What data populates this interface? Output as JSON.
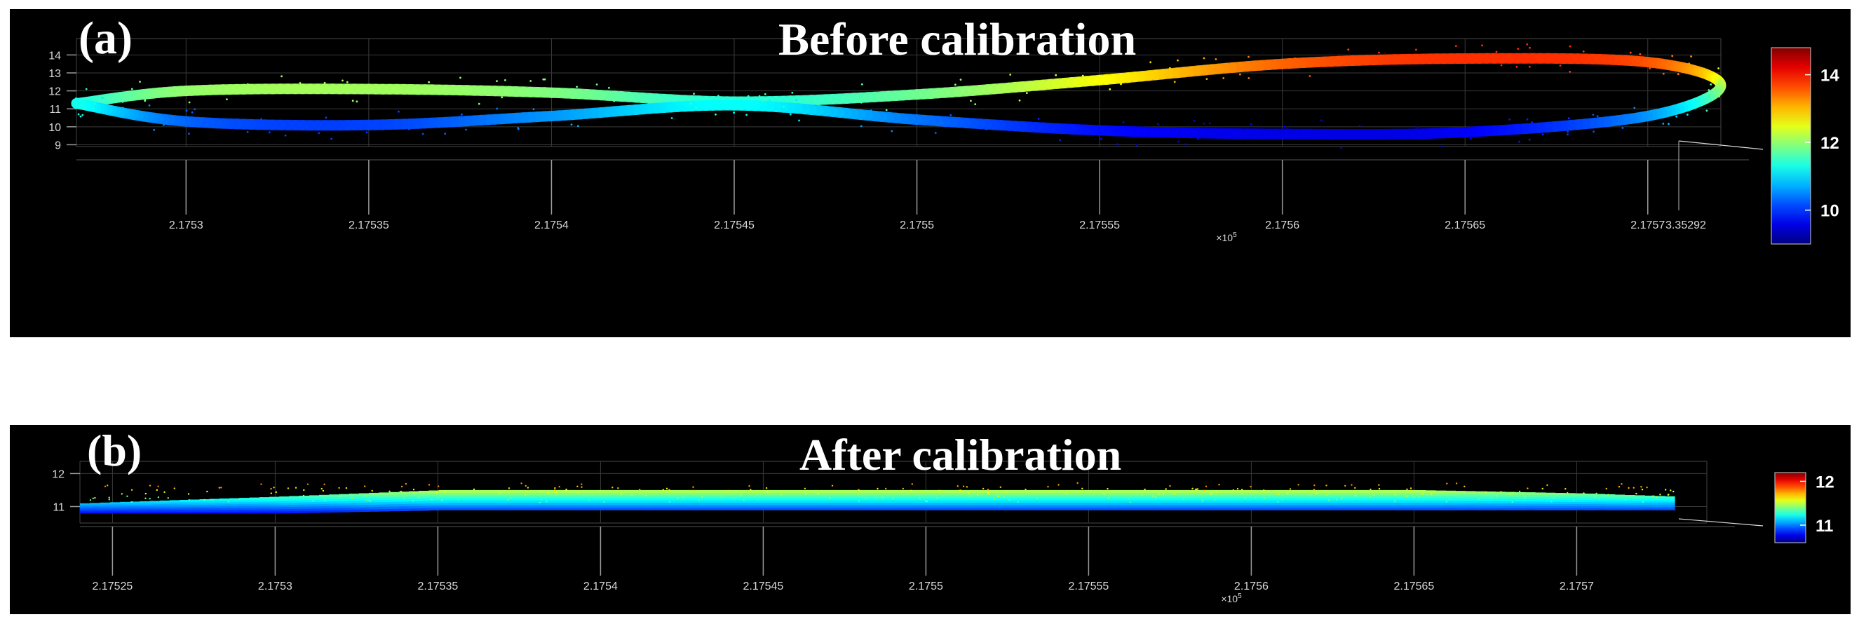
{
  "figure": {
    "panels": [
      {
        "tag": "(a)",
        "title": "Before calibration",
        "colors": {
          "background": "#000000",
          "axis": "#9a9a9a",
          "grid": "#3a3a3a"
        }
      },
      {
        "tag": "(b)",
        "title": "After calibration",
        "colors": {
          "background": "#000000",
          "axis": "#9a9a9a",
          "grid": "#3a3a3a"
        }
      }
    ]
  },
  "chart_data": [
    {
      "type": "scatter",
      "title": "Before calibration",
      "panel_label": "(a)",
      "colormap": "jet",
      "x_tick_labels": [
        "2.1753",
        "2.17535",
        "2.1754",
        "2.17545",
        "2.1755",
        "2.17555",
        "2.1756",
        "2.17565",
        "2.1757"
      ],
      "x_tick_values": [
        2.1753,
        2.17535,
        2.1754,
        2.17545,
        2.1755,
        2.17555,
        2.1756,
        2.17565,
        2.1757
      ],
      "x_exponent_label": "×10",
      "x_exponent": "5",
      "depth_tick_label": "3.35292",
      "xlim": [
        2.17527,
        2.17572
      ],
      "y_tick_labels": [
        "9",
        "10",
        "11",
        "12",
        "13",
        "14"
      ],
      "y_tick_values": [
        9,
        10,
        11,
        12,
        13,
        14
      ],
      "ylim": [
        8.9,
        14.6
      ],
      "colorbar": {
        "tick_labels": [
          "10",
          "12",
          "14"
        ],
        "tick_values": [
          10,
          12,
          14
        ],
        "range": [
          9.0,
          14.8
        ]
      },
      "grid": true,
      "shape": "figure-eight loop",
      "series": [
        {
          "x": [
            2.17527,
            2.1753,
            2.17535,
            2.1754,
            2.17545,
            2.1755,
            2.17555,
            2.1756,
            2.17565,
            2.1757,
            2.17572,
            2.1757,
            2.17565,
            2.1756,
            2.17555,
            2.1755,
            2.17545,
            2.1754,
            2.17535,
            2.1753,
            2.17527
          ],
          "y": [
            11.3,
            12.0,
            12.1,
            11.9,
            11.4,
            11.8,
            12.6,
            13.5,
            13.8,
            13.6,
            12.3,
            10.6,
            9.7,
            9.6,
            9.8,
            10.4,
            11.2,
            10.6,
            10.1,
            10.3,
            11.3
          ]
        }
      ]
    },
    {
      "type": "scatter",
      "title": "After calibration",
      "panel_label": "(b)",
      "colormap": "jet",
      "x_tick_labels": [
        "2.17525",
        "2.1753",
        "2.17535",
        "2.1754",
        "2.17545",
        "2.1755",
        "2.17555",
        "2.1756",
        "2.17565",
        "2.1757"
      ],
      "x_tick_values": [
        2.17525,
        2.1753,
        2.17535,
        2.1754,
        2.17545,
        2.1755,
        2.17555,
        2.1756,
        2.17565,
        2.1757
      ],
      "x_exponent_label": "×10",
      "x_exponent": "5",
      "xlim": [
        2.17524,
        2.17574
      ],
      "y_tick_labels": [
        "11",
        "12"
      ],
      "y_tick_values": [
        11,
        12
      ],
      "ylim": [
        10.5,
        12.2
      ],
      "colorbar": {
        "tick_labels": [
          "11",
          "12"
        ],
        "tick_values": [
          11,
          12
        ],
        "range": [
          10.6,
          12.2
        ]
      },
      "grid": true,
      "shape": "flat band",
      "series": [
        {
          "x": [
            2.17524,
            2.1753,
            2.17535,
            2.1754,
            2.17545,
            2.1755,
            2.17555,
            2.1756,
            2.17565,
            2.1757,
            2.17573
          ],
          "y_top": [
            11.1,
            11.3,
            11.5,
            11.5,
            11.5,
            11.5,
            11.5,
            11.5,
            11.5,
            11.4,
            11.3
          ],
          "y_bottom": [
            10.8,
            10.8,
            10.9,
            10.9,
            10.9,
            10.9,
            10.9,
            10.9,
            10.9,
            10.9,
            10.9
          ]
        }
      ]
    }
  ]
}
